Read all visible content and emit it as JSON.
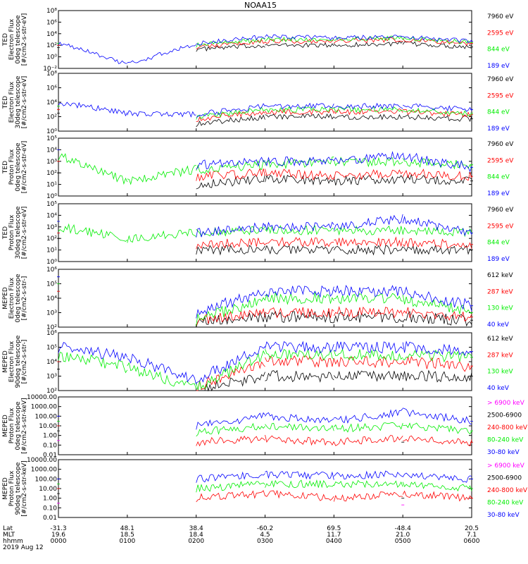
{
  "title": "NOAA15",
  "colors": {
    "blue": "#0000ff",
    "red": "#ff0000",
    "green": "#00ee00",
    "black": "#000000",
    "magenta": "#ff00ff"
  },
  "panels": [
    {
      "ylabel": [
        "TED",
        "Electron Flux",
        "0deg telescope",
        "[#/cm2-s-str-eV]"
      ],
      "yticks": [
        "10⁸",
        "10⁶",
        "10⁴",
        "10²",
        "10⁰",
        "10⁻²"
      ],
      "legend": [
        {
          "text": "7960 eV",
          "color": "black"
        },
        {
          "text": "2595 eV",
          "color": "red"
        },
        {
          "text": "844 eV",
          "color": "green"
        },
        {
          "text": "189 eV",
          "color": "blue"
        }
      ]
    },
    {
      "ylabel": [
        "TED",
        "Electron Flux",
        "30deg telescope",
        "[#/cm2-s-str-eV]"
      ],
      "yticks": [
        "10⁸",
        "10⁶",
        "10⁴",
        "10²",
        "10⁰"
      ],
      "legend": [
        {
          "text": "7960 eV",
          "color": "black"
        },
        {
          "text": "2595 eV",
          "color": "red"
        },
        {
          "text": "844 eV",
          "color": "green"
        },
        {
          "text": "189 eV",
          "color": "blue"
        }
      ]
    },
    {
      "ylabel": [
        "TED",
        "Proton Flux",
        "0deg telescope",
        "[#/cm2-s-str-eV]"
      ],
      "yticks": [
        "10⁵",
        "10⁴",
        "10³",
        "10²",
        "10¹",
        "10⁰"
      ],
      "legend": [
        {
          "text": "7960 eV",
          "color": "black"
        },
        {
          "text": "2595 eV",
          "color": "red"
        },
        {
          "text": "844 eV",
          "color": "green"
        },
        {
          "text": "189 eV",
          "color": "blue"
        }
      ]
    },
    {
      "ylabel": [
        "TED",
        "Proton Flux",
        "30deg telescope",
        "[#/cm2-s-str-eV]"
      ],
      "yticks": [
        "10⁵",
        "10⁴",
        "10³",
        "10²",
        "10¹",
        "10⁰"
      ],
      "legend": [
        {
          "text": "7960 eV",
          "color": "black"
        },
        {
          "text": "2595 eV",
          "color": "red"
        },
        {
          "text": "844 eV",
          "color": "green"
        },
        {
          "text": "189 eV",
          "color": "blue"
        }
      ]
    },
    {
      "ylabel": [
        "MEPED",
        "Electron Flux",
        "0deg telescope",
        "[#/cm2-s-str-]"
      ],
      "yticks": [
        "10⁶",
        "10⁵",
        "10⁴",
        "10³",
        "10²"
      ],
      "legend": [
        {
          "text": "612 keV",
          "color": "black"
        },
        {
          "text": "287 keV",
          "color": "red"
        },
        {
          "text": "130 keV",
          "color": "green"
        },
        {
          "text": "40 keV",
          "color": "blue"
        }
      ]
    },
    {
      "ylabel": [
        "MEPED",
        "Electron Flux",
        "90deg telescope",
        "[#/cm2-s-str-]"
      ],
      "yticks": [
        "10⁶",
        "10⁵",
        "10⁴",
        "10³",
        "10²"
      ],
      "legend": [
        {
          "text": "612 keV",
          "color": "black"
        },
        {
          "text": "287 keV",
          "color": "red"
        },
        {
          "text": "130 keV",
          "color": "green"
        },
        {
          "text": "40 keV",
          "color": "blue"
        }
      ]
    },
    {
      "ylabel": [
        "MEPED",
        "Proton Flux",
        "0deg telescope",
        "[#/cm2-s-str-keV]"
      ],
      "yticks": [
        "10000.00",
        "1000.00",
        "100.00",
        "10.00",
        "1.00",
        "0.10",
        "0.01"
      ],
      "legend": [
        {
          "text": "> 6900 keV",
          "color": "magenta"
        },
        {
          "text": "2500-6900",
          "color": "black"
        },
        {
          "text": "240-800 keV",
          "color": "red"
        },
        {
          "text": "80-240 keV",
          "color": "green"
        },
        {
          "text": "30-80 keV",
          "color": "blue"
        }
      ]
    },
    {
      "ylabel": [
        "MEPED",
        "Proton Flux",
        "90deg telescope",
        "[#/cm2-s-str-keV]"
      ],
      "yticks": [
        "10000.00",
        "1000.00",
        "100.00",
        "10.00",
        "1.00",
        "0.10",
        "0.01"
      ],
      "legend": [
        {
          "text": "> 6900 keV",
          "color": "magenta"
        },
        {
          "text": "2500-6900",
          "color": "black"
        },
        {
          "text": "240-800 keV",
          "color": "red"
        },
        {
          "text": "80-240 keV",
          "color": "green"
        },
        {
          "text": "30-80 keV",
          "color": "blue"
        }
      ]
    }
  ],
  "xaxis": {
    "row_labels": [
      "Lat",
      "MLT",
      "hhmm"
    ],
    "lat": [
      "-31.3",
      "48.1",
      "38.4",
      "-60.2",
      "69.5",
      "-48.4",
      "20.5"
    ],
    "mlt": [
      "19.6",
      "18.5",
      "18.4",
      "4.5",
      "11.7",
      "21.0",
      "7.1"
    ],
    "hhmm": [
      "0000",
      "0100",
      "0200",
      "0300",
      "0400",
      "0500",
      "0600"
    ],
    "date": "2019 Aug 12"
  },
  "chart_data": {
    "type": "line",
    "title": "NOAA15",
    "x": [
      "0000",
      "0100",
      "0200",
      "0300",
      "0400",
      "0500",
      "0600"
    ],
    "xunit": "hhmm",
    "yscale": "log",
    "date": "2019 Aug 12",
    "panels": [
      {
        "name": "TED Electron Flux 0deg telescope",
        "ylim": [
          0.01,
          100000000
        ],
        "series": [
          {
            "name": "189 eV",
            "values": [
              300,
              0.05,
              200,
              3000,
              2000,
              3000,
              500
            ]
          },
          {
            "name": "844 eV",
            "values": [
              200,
              null,
              100,
              1000,
              1000,
              2000,
              300
            ]
          },
          {
            "name": "2595 eV",
            "values": [
              100,
              null,
              50,
              500,
              500,
              1000,
              200
            ]
          },
          {
            "name": "7960 eV",
            "values": [
              40,
              null,
              20,
              100,
              100,
              200,
              50
            ]
          }
        ]
      },
      {
        "name": "TED Electron Flux 30deg telescope",
        "ylim": [
          1,
          100000000
        ],
        "series": [
          {
            "name": "189 eV",
            "values": [
              10000,
              300,
              200,
              3000,
              3000,
              3000,
              1000
            ]
          },
          {
            "name": "844 eV",
            "values": [
              3000,
              null,
              100,
              1000,
              1000,
              1000,
              300
            ]
          },
          {
            "name": "2595 eV",
            "values": [
              1000,
              null,
              50,
              500,
              500,
              500,
              200
            ]
          },
          {
            "name": "7960 eV",
            "values": [
              300,
              null,
              10,
              100,
              100,
              100,
              50
            ]
          }
        ]
      },
      {
        "name": "TED Proton Flux 0deg telescope",
        "ylim": [
          1,
          100000
        ],
        "series": [
          {
            "name": "189 eV",
            "values": [
              10000,
              null,
              500,
              1000,
              1000,
              3000,
              300
            ]
          },
          {
            "name": "844 eV",
            "values": [
              3000,
              20,
              200,
              500,
              1000,
              800,
              500
            ]
          },
          {
            "name": "2595 eV",
            "values": [
              1000,
              null,
              50,
              100,
              50,
              100,
              50
            ]
          },
          {
            "name": "7960 eV",
            "values": [
              100,
              null,
              10,
              30,
              20,
              30,
              20
            ]
          }
        ]
      },
      {
        "name": "TED Proton Flux 30deg telescope",
        "ylim": [
          1,
          100000
        ],
        "series": [
          {
            "name": "189 eV",
            "values": [
              3000,
              null,
              300,
              1000,
              1000,
              5000,
              300
            ]
          },
          {
            "name": "844 eV",
            "values": [
              1000,
              100,
              300,
              500,
              500,
              500,
              300
            ]
          },
          {
            "name": "2595 eV",
            "values": [
              300,
              null,
              30,
              50,
              50,
              50,
              30
            ]
          },
          {
            "name": "7960 eV",
            "values": [
              100,
              null,
              10,
              10,
              10,
              10,
              10
            ]
          }
        ]
      },
      {
        "name": "MEPED Electron Flux 0deg telescope",
        "ylim": [
          100,
          1000000
        ],
        "series": [
          {
            "name": "40 keV",
            "values": [
              300000,
              null,
              1000,
              30000,
              30000,
              30000,
              3000
            ]
          },
          {
            "name": "130 keV",
            "values": [
              100000,
              null,
              300,
              10000,
              10000,
              10000,
              1000
            ]
          },
          {
            "name": "287 keV",
            "values": [
              30000,
              null,
              300,
              1000,
              1000,
              1000,
              500
            ]
          },
          {
            "name": "612 keV",
            "values": [
              10000,
              null,
              200,
              500,
              500,
              500,
              300
            ]
          }
        ]
      },
      {
        "name": "MEPED Electron Flux 90deg telescope",
        "ylim": [
          100,
          1000000
        ],
        "series": [
          {
            "name": "40 keV",
            "values": [
              100000,
              20000,
              600,
              100000,
              100000,
              100000,
              50000
            ]
          },
          {
            "name": "130 keV",
            "values": [
              30000,
              4000,
              150,
              30000,
              30000,
              30000,
              20000
            ]
          },
          {
            "name": "287 keV",
            "values": [
              10000,
              null,
              200,
              10000,
              10000,
              10000,
              5000
            ]
          },
          {
            "name": "612 keV",
            "values": [
              3000,
              null,
              100,
              1000,
              1000,
              1000,
              1000
            ]
          }
        ]
      },
      {
        "name": "MEPED Proton Flux 0deg telescope",
        "ylim": [
          0.01,
          10000
        ],
        "series": [
          {
            "name": "30-80 keV",
            "values": [
              100,
              null,
              10,
              100,
              30,
              300,
              30
            ]
          },
          {
            "name": "80-240 keV",
            "values": [
              30,
              null,
              2,
              10,
              5,
              10,
              3
            ]
          },
          {
            "name": "240-800 keV",
            "values": [
              10,
              null,
              0.2,
              0.5,
              0.2,
              0.5,
              0.2
            ]
          },
          {
            "name": "2500-6900",
            "values": [
              3,
              null,
              null,
              null,
              null,
              0.2,
              null
            ]
          },
          {
            "name": "> 6900 keV",
            "values": [
              0.3,
              null,
              null,
              null,
              null,
              null,
              null
            ]
          }
        ]
      },
      {
        "name": "MEPED Proton Flux 90deg telescope",
        "ylim": [
          0.01,
          10000
        ],
        "series": [
          {
            "name": "30-80 keV",
            "values": [
              100,
              null,
              100,
              300,
              200,
              300,
              100
            ]
          },
          {
            "name": "80-240 keV",
            "values": [
              30,
              null,
              10,
              30,
              30,
              30,
              10
            ]
          },
          {
            "name": "240-800 keV",
            "values": [
              10,
              null,
              1,
              3,
              1,
              3,
              1
            ]
          },
          {
            "name": "2500-6900",
            "values": [
              3,
              null,
              null,
              null,
              null,
              1,
              null
            ]
          },
          {
            "name": "> 6900 keV",
            "values": [
              0.3,
              null,
              null,
              null,
              null,
              0.2,
              null
            ]
          }
        ]
      }
    ]
  }
}
